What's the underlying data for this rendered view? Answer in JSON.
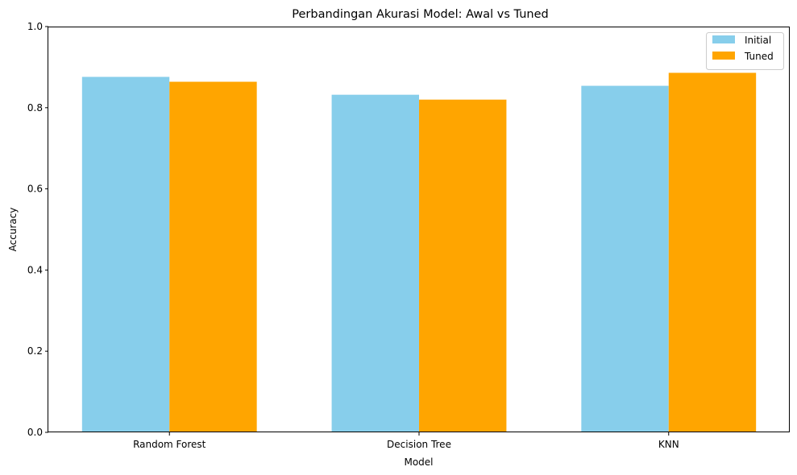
{
  "chart_data": {
    "type": "bar",
    "title": "Perbandingan Akurasi Model: Awal vs Tuned",
    "xlabel": "Model",
    "ylabel": "Accuracy",
    "categories": [
      "Random Forest",
      "Decision Tree",
      "KNN"
    ],
    "series": [
      {
        "name": "Initial",
        "values": [
          0.876,
          0.832,
          0.854
        ],
        "color": "#87ceeb"
      },
      {
        "name": "Tuned",
        "values": [
          0.864,
          0.82,
          0.886
        ],
        "color": "#ffa500"
      }
    ],
    "ylim": [
      0,
      1.0
    ],
    "yticks": [
      "0.0",
      "0.2",
      "0.4",
      "0.6",
      "0.8",
      "1.0"
    ],
    "grid": false,
    "legend_position": "top-right"
  }
}
